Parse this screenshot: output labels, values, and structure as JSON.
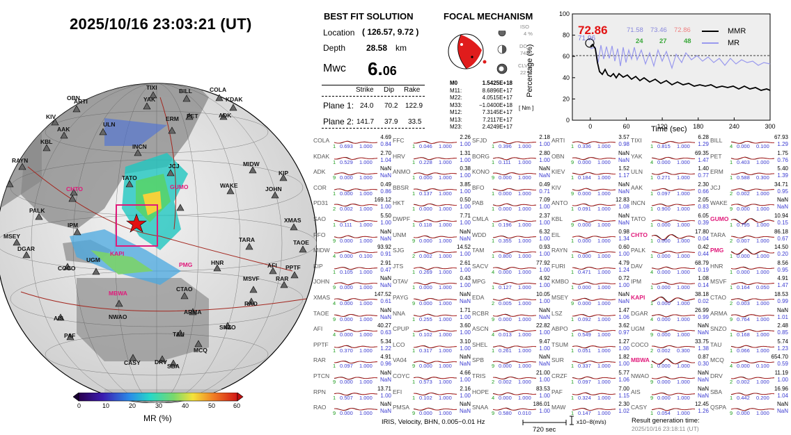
{
  "header": {
    "datetime": "2025/10/16  23:03:21 (UT)"
  },
  "best_fit": {
    "title": "BEST FIT SOLUTION",
    "location_label": "Location",
    "location_value": "( 126.57,  9.72 )",
    "depth_label": "Depth",
    "depth_value": "28.58",
    "depth_unit": "km",
    "mw_label": "Mwc",
    "mw_value_main": "6.",
    "mw_value_sub": "06",
    "col_strike": "Strike",
    "col_dip": "Dip",
    "col_rake": "Rake",
    "plane1_label": "Plane 1:",
    "plane1": [
      "24.0",
      "70.2",
      "122.9"
    ],
    "plane2_label": "Plane 2:",
    "plane2": [
      "141.7",
      "37.9",
      "33.5"
    ]
  },
  "focal": {
    "title": "FOCAL MECHANISM",
    "iso_label": "ISO",
    "iso_value": "4 %",
    "dc_label": "DC",
    "dc_value": "74 %",
    "clvd_label": "CLVD",
    "clvd_value": "22 %",
    "tensor": [
      {
        "k": "M0",
        "v": "1.5425E+18"
      },
      {
        "k": "M11:",
        "v": "8.6896E+17"
      },
      {
        "k": "M22:",
        "v": "4.0515E+17"
      },
      {
        "k": "M33:",
        "v": "−1.0400E+18"
      },
      {
        "k": "M12:",
        "v": "7.3145E+17"
      },
      {
        "k": "M13:",
        "v": "7.2117E+17"
      },
      {
        "k": "M23:",
        "v": "2.4249E+17"
      }
    ],
    "unit": "[ Nm ]"
  },
  "mr_chart": {
    "ylabel": "Percentage (%)",
    "xlabel": "Time (sec)",
    "x_ticks": [
      "0",
      "60",
      "120",
      "180",
      "240",
      "300"
    ],
    "y_ticks": [
      "0",
      "20",
      "40",
      "60",
      "80",
      "100"
    ],
    "peak_value": "72.86",
    "peak_sub": "71.96",
    "stats_blue": [
      "71.58",
      "73.46"
    ],
    "stats_red": "72.86",
    "stats_green": [
      "24",
      "27",
      "48"
    ],
    "legend_mmr": "MMR",
    "legend_mr": "MR",
    "color_mmr": "#000000",
    "color_mr": "#9999ee"
  },
  "map": {
    "colorbar_label": "MR (%)",
    "colorbar_ticks": [
      "0",
      "10",
      "20",
      "30",
      "40",
      "50",
      "60"
    ],
    "stations_black": [
      "TIXI",
      "BILL",
      "COLA",
      "OBN",
      "ARTI",
      "YAK",
      "KDAK",
      "KIV",
      "AAK",
      "ULN",
      "PET",
      "ADK",
      "KBL",
      "INCN",
      "ERM",
      "MIDW",
      "RAYN",
      "TATO",
      "JCJ",
      "KIP",
      "WAKE",
      "JOHN",
      "PALK",
      "IPM",
      "XMAS",
      "MSEY",
      "TARA",
      "TAOE",
      "DGAR",
      "COCO",
      "UGM",
      "HNR",
      "AFI",
      "PPTF",
      "RAR",
      "MSVF",
      "CTAO",
      "RAO",
      "NWAO",
      "ARMA",
      "AIS",
      "SNZO",
      "PAF",
      "TAU",
      "MCQ",
      "CASY",
      "DRV",
      "SBA"
    ],
    "stations_pink": [
      "CHTO",
      "GUMO",
      "KAPI",
      "PMG",
      "MBWA"
    ]
  },
  "stations": [
    [
      {
        "n": "COLA",
        "a": "4.69",
        "b": "0.84",
        "c": "1",
        "d": "0.693",
        "e": "1.000"
      },
      {
        "n": "KDAK",
        "a": "2.70",
        "b": "1.04",
        "c": "1",
        "d": "0.529",
        "e": "1.000"
      },
      {
        "n": "ADK",
        "a": "NaN",
        "b": "NaN",
        "c": "9",
        "d": "0.000",
        "e": "1.000"
      },
      {
        "n": "COR",
        "a": "0.49",
        "b": "0.86",
        "c": "1",
        "d": "0.000",
        "e": "1.000"
      },
      {
        "n": "PD31",
        "a": "169.12",
        "b": "1.00",
        "c": "2",
        "d": "0.002",
        "e": "1.000"
      },
      {
        "n": "SAO",
        "a": "5.50",
        "b": "1.00",
        "c": "1",
        "d": "0.111",
        "e": "1.000"
      },
      {
        "n": "PFO",
        "a": "NaN",
        "b": "NaN",
        "c": "9",
        "d": "0.000",
        "e": "1.000"
      },
      {
        "n": "MIDW",
        "a": "93.92",
        "b": "0.91",
        "c": "4",
        "d": "0.000",
        "e": "0.100"
      },
      {
        "n": "KIP",
        "a": "2.91",
        "b": "0.47",
        "c": "1",
        "d": "0.105",
        "e": "1.000"
      },
      {
        "n": "JOHN",
        "a": "NaN",
        "b": "NaN",
        "c": "9",
        "d": "0.000",
        "e": "1.000"
      },
      {
        "n": "XMAS",
        "a": "147.52",
        "b": "0.61",
        "c": "4",
        "d": "0.000",
        "e": "1.000"
      },
      {
        "n": "TAOE",
        "a": "NaN",
        "b": "NaN",
        "c": "9",
        "d": "0.000",
        "e": "1.000"
      },
      {
        "n": "AFI",
        "a": "40.27",
        "b": "0.63",
        "c": "4",
        "d": "0.000",
        "e": "1.000"
      },
      {
        "n": "PPTF",
        "a": "5.34",
        "b": "1.22",
        "c": "1",
        "d": "0.370",
        "e": "1.000"
      },
      {
        "n": "RAR",
        "a": "4.91",
        "b": "0.96",
        "c": "1",
        "d": "0.097",
        "e": "1.000"
      },
      {
        "n": "PTCN",
        "a": "NaN",
        "b": "NaN",
        "c": "9",
        "d": "0.000",
        "e": "1.000"
      },
      {
        "n": "RPN",
        "a": "13.71",
        "b": "1.00",
        "c": "1",
        "d": "0.507",
        "e": "1.000"
      },
      {
        "n": "RAO",
        "a": "NaN",
        "b": "NaN",
        "c": "9",
        "d": "0.000",
        "e": "1.000"
      }
    ],
    [
      {
        "n": "FFC",
        "a": "2.26",
        "b": "1.00",
        "c": "1",
        "d": "0.046",
        "e": "1.000"
      },
      {
        "n": "HRV",
        "a": "1.31",
        "b": "1.00",
        "c": "1",
        "d": "0.228",
        "e": "1.000"
      },
      {
        "n": "ANMO",
        "a": "0.38",
        "b": "1.00",
        "c": "1",
        "d": "0.000",
        "e": "1.000"
      },
      {
        "n": "BBSR",
        "a": "3.85",
        "b": "1.00",
        "c": "1",
        "d": "0.137",
        "e": "1.000"
      },
      {
        "n": "HKT",
        "a": "0.50",
        "b": "1.00",
        "c": "1",
        "d": "0.000",
        "e": "1.000"
      },
      {
        "n": "DWPF",
        "a": "7.71",
        "b": "1.00",
        "c": "1",
        "d": "0.118",
        "e": "1.000"
      },
      {
        "n": "UNM",
        "a": "NaN",
        "b": "NaN",
        "c": "9",
        "d": "0.000",
        "e": "1.000"
      },
      {
        "n": "SJG",
        "a": "14.52",
        "b": "1.00",
        "c": "2",
        "d": "0.002",
        "e": "1.000"
      },
      {
        "n": "JTS",
        "a": "2.61",
        "b": "1.00",
        "c": "1",
        "d": "0.269",
        "e": "1.000"
      },
      {
        "n": "OTAV",
        "a": "0.43",
        "b": "1.00",
        "c": "1",
        "d": "0.000",
        "e": "1.000"
      },
      {
        "n": "PAYG",
        "a": "NaN",
        "b": "NaN",
        "c": "9",
        "d": "0.000",
        "e": "1.000"
      },
      {
        "n": "NNA",
        "a": "1.71",
        "b": "1.00",
        "c": "1",
        "d": "0.255",
        "e": "1.000"
      },
      {
        "n": "CPUP",
        "a": "3.60",
        "b": "1.00",
        "c": "1",
        "d": "0.102",
        "e": "1.000"
      },
      {
        "n": "LCO",
        "a": "3.10",
        "b": "1.00",
        "c": "1",
        "d": "0.317",
        "e": "1.000"
      },
      {
        "n": "VA04",
        "a": "NaN",
        "b": "NaN",
        "c": "9",
        "d": "0.000",
        "e": "1.000"
      },
      {
        "n": "COYC",
        "a": "4.66",
        "b": "1.00",
        "c": "1",
        "d": "0.573",
        "e": "1.000"
      },
      {
        "n": "EFI",
        "a": "2.16",
        "b": "1.00",
        "c": "1",
        "d": "0.102",
        "e": "1.000"
      },
      {
        "n": "PMSA",
        "a": "NaN",
        "b": "NaN",
        "c": "9",
        "d": "0.000",
        "e": "1.000"
      }
    ],
    [
      {
        "n": "SFJD",
        "a": "2.18",
        "b": "1.00",
        "c": "1",
        "d": "0.396",
        "e": "1.000"
      },
      {
        "n": "BORG",
        "a": "2.80",
        "b": "1.00",
        "c": "1",
        "d": "0.111",
        "e": "1.000"
      },
      {
        "n": "KONO",
        "a": "NaN",
        "b": "NaN",
        "c": "9",
        "d": "0.000",
        "e": "1.000"
      },
      {
        "n": "BFO",
        "a": "0.49",
        "b": "0.71",
        "c": "1",
        "d": "0.000",
        "e": "1.000"
      },
      {
        "n": "PAB",
        "a": "7.09",
        "b": "1.00",
        "c": "1",
        "d": "0.000",
        "e": "1.000"
      },
      {
        "n": "CMLA",
        "a": "2.37",
        "b": "1.00",
        "c": "1",
        "d": "0.196",
        "e": "1.000"
      },
      {
        "n": "WDD",
        "a": "6.32",
        "b": "1.00",
        "c": "1",
        "d": "0.355",
        "e": "1.000"
      },
      {
        "n": "TAM",
        "a": "0.93",
        "b": "1.00",
        "c": "1",
        "d": "0.800",
        "e": "1.000"
      },
      {
        "n": "SACV",
        "a": "77.92",
        "b": "1.00",
        "c": "4",
        "d": "0.000",
        "e": "1.000"
      },
      {
        "n": "MPG",
        "a": "4.92",
        "b": "1.00",
        "c": "1",
        "d": "0.127",
        "e": "1.000"
      },
      {
        "n": "EDA",
        "a": "10.05",
        "b": "1.00",
        "c": "2",
        "d": "0.005",
        "e": "1.000"
      },
      {
        "n": "RCBR",
        "a": "NaN",
        "b": "NaN",
        "c": "9",
        "d": "0.000",
        "e": "1.000"
      },
      {
        "n": "ASCN",
        "a": "22.82",
        "b": "1.00",
        "c": "4",
        "d": "0.013",
        "e": "1.000"
      },
      {
        "n": "SHEL",
        "a": "9.47",
        "b": "1.00",
        "c": "1",
        "d": "0.261",
        "e": "1.000"
      },
      {
        "n": "SPB",
        "a": "NaN",
        "b": "NaN",
        "c": "9",
        "d": "0.000",
        "e": "1.000"
      },
      {
        "n": "TRIS",
        "a": "21.00",
        "b": "1.00",
        "c": "2",
        "d": "0.002",
        "e": "1.000"
      },
      {
        "n": "HOPE",
        "a": "83.53",
        "b": "1.00",
        "c": "4",
        "d": "0.000",
        "e": "1.000"
      },
      {
        "n": "SNAA",
        "a": "186.01",
        "b": "1.00",
        "c": "9",
        "d": "0.580",
        "e": "0.010"
      }
    ],
    [
      {
        "n": "ARTI",
        "a": "3.57",
        "b": "0.98",
        "c": "1",
        "d": "0.336",
        "e": "1.000"
      },
      {
        "n": "OBN",
        "a": "NaN",
        "b": "NaN",
        "c": "9",
        "d": "0.000",
        "e": "1.000"
      },
      {
        "n": "KIEV",
        "a": "1.52",
        "b": "1.17",
        "c": "1",
        "d": "0.184",
        "e": "1.000"
      },
      {
        "n": "KIV",
        "a": "NaN",
        "b": "NaN",
        "c": "9",
        "d": "0.000",
        "e": "1.000"
      },
      {
        "n": "ANTO",
        "a": "12.83",
        "b": "1.08",
        "c": "1",
        "d": "0.091",
        "e": "1.000"
      },
      {
        "n": "KBL",
        "a": "NaN",
        "b": "NaN",
        "c": "9",
        "d": "0.000",
        "e": "1.000"
      },
      {
        "n": "EIL",
        "a": "0.98",
        "b": "1.34",
        "c": "1",
        "d": "0.000",
        "e": "1.000"
      },
      {
        "n": "RAYN",
        "a": "0.60",
        "b": "1.00",
        "c": "1",
        "d": "0.000",
        "e": "1.000"
      },
      {
        "n": "FURI",
        "a": "4.79",
        "b": "1.24",
        "c": "1",
        "d": "0.471",
        "e": "1.000"
      },
      {
        "n": "KMBO",
        "a": "0.72",
        "b": "1.00",
        "c": "1",
        "d": "0.000",
        "e": "1.000"
      },
      {
        "n": "MSEY",
        "a": "NaN",
        "b": "NaN",
        "c": "9",
        "d": "0.000",
        "e": "1.000"
      },
      {
        "n": "LSZ",
        "a": "1.47",
        "b": "1.06",
        "c": "1",
        "d": "0.092",
        "e": "1.000"
      },
      {
        "n": "ABPO",
        "a": "3.62",
        "b": "0.97",
        "c": "1",
        "d": "0.549",
        "e": "1.000"
      },
      {
        "n": "TSUM",
        "a": "1.27",
        "b": "1.00",
        "c": "1",
        "d": "0.051",
        "e": "1.000"
      },
      {
        "n": "SUR",
        "a": "1.82",
        "b": "1.00",
        "c": "1",
        "d": "0.337",
        "e": "1.000"
      },
      {
        "n": "CRZF",
        "a": "5.77",
        "b": "1.06",
        "c": "1",
        "d": "0.097",
        "e": "1.000"
      },
      {
        "n": "PAF",
        "a": "7.00",
        "b": "1.15",
        "c": "1",
        "d": "0.324",
        "e": "1.000"
      },
      {
        "n": "MAW",
        "a": "2.30",
        "b": "1.02",
        "c": "1",
        "d": "0.147",
        "e": "1.000"
      }
    ],
    [
      {
        "n": "TIXI",
        "a": "6.28",
        "b": "1.29",
        "c": "1",
        "d": "0.815",
        "e": "1.000"
      },
      {
        "n": "YAK",
        "a": "69.35",
        "b": "1.47",
        "c": "4",
        "d": "0.000",
        "e": "1.000"
      },
      {
        "n": "ULN",
        "a": "1.40",
        "b": "0.77",
        "c": "1",
        "d": "0.271",
        "e": "1.000"
      },
      {
        "n": "AAK",
        "a": "2.30",
        "b": "0.66",
        "c": "1",
        "d": "0.097",
        "e": "1.000"
      },
      {
        "n": "INCN",
        "a": "2.05",
        "b": "0.83",
        "c": "1",
        "d": "0.900",
        "e": "1.000"
      },
      {
        "n": "TATO",
        "a": "6.05",
        "b": "0.39",
        "c": "1",
        "d": "0.000",
        "e": "1.000"
      },
      {
        "n": "CHTO",
        "a": "17.80",
        "b": "0.04",
        "c": "1",
        "d": "0.000",
        "e": "1.000",
        "pk": true
      },
      {
        "n": "PALK",
        "a": "0.42",
        "b": "0.44",
        "c": "1",
        "d": "0.000",
        "e": "1.000"
      },
      {
        "n": "DAV",
        "a": "68.79",
        "b": "0.19",
        "c": "4",
        "d": "0.000",
        "e": "1.000"
      },
      {
        "n": "IPM",
        "a": "1.08",
        "b": "0.14",
        "c": "1",
        "d": "0.000",
        "e": "1.000"
      },
      {
        "n": "KAPI",
        "a": "38.18",
        "b": "0.02",
        "c": "1",
        "d": "0.000",
        "e": "1.000",
        "pk": true
      },
      {
        "n": "DGAR",
        "a": "26.99",
        "b": "0.99",
        "c": "4",
        "d": "0.000",
        "e": "1.000"
      },
      {
        "n": "UGM",
        "a": "NaN",
        "b": "NaN",
        "c": "9",
        "d": "0.000",
        "e": "1.000"
      },
      {
        "n": "COCO",
        "a": "33.75",
        "b": "1.38",
        "c": "2",
        "d": "0.002",
        "e": "0.300"
      },
      {
        "n": "MBWA",
        "a": "0.87",
        "b": "0.30",
        "c": "1",
        "d": "0.000",
        "e": "1.000",
        "pk": true
      },
      {
        "n": "NWAO",
        "a": "NaN",
        "b": "NaN",
        "c": "9",
        "d": "0.000",
        "e": "1.000"
      },
      {
        "n": "AIS",
        "a": "NaN",
        "b": "NaN",
        "c": "9",
        "d": "0.000",
        "e": "1.000"
      },
      {
        "n": "CASY",
        "a": "12.45",
        "b": "1.26",
        "c": "1",
        "d": "0.054",
        "e": "1.000"
      }
    ],
    [
      {
        "n": "BILL",
        "a": "67.93",
        "b": "1.29",
        "c": "4",
        "d": "0.000",
        "e": "0.100"
      },
      {
        "n": "PET",
        "a": "1.75",
        "b": "0.76",
        "c": "1",
        "d": "0.403",
        "e": "1.000"
      },
      {
        "n": "ERM",
        "a": "5.40",
        "b": "1.39",
        "c": "1",
        "d": "0.588",
        "e": "0.300"
      },
      {
        "n": "JCJ",
        "a": "34.71",
        "b": "0.95",
        "c": "2",
        "d": "0.002",
        "e": "1.000"
      },
      {
        "n": "WAKE",
        "a": "NaN",
        "b": "NaN",
        "c": "9",
        "d": "0.000",
        "e": "1.000"
      },
      {
        "n": "GUMO",
        "a": "10.94",
        "b": "0.15",
        "c": "1",
        "d": "0.795",
        "e": "1.000",
        "pk": true
      },
      {
        "n": "TARA",
        "a": "86.18",
        "b": "0.67",
        "c": "2",
        "d": "0.007",
        "e": "1.000"
      },
      {
        "n": "PMG",
        "a": "14.50",
        "b": "0.20",
        "c": "1",
        "d": "0.000",
        "e": "1.000",
        "pk": true
      },
      {
        "n": "HNR",
        "a": "8.56",
        "b": "0.95",
        "c": "1",
        "d": "0.000",
        "e": "1.000"
      },
      {
        "n": "MSVF",
        "a": "4.91",
        "b": "1.47",
        "c": "1",
        "d": "0.164",
        "e": "0.050"
      },
      {
        "n": "CTAO",
        "a": "18.53",
        "b": "0.99",
        "c": "2",
        "d": "0.003",
        "e": "1.000"
      },
      {
        "n": "ARMA",
        "a": "NaN",
        "b": "1.01",
        "c": "9",
        "d": "0.764",
        "e": "1.000"
      },
      {
        "n": "SNZO",
        "a": "2.48",
        "b": "0.85",
        "c": "1",
        "d": "0.168",
        "e": "1.000"
      },
      {
        "n": "TAU",
        "a": "5.74",
        "b": "1.23",
        "c": "1",
        "d": "0.066",
        "e": "1.000"
      },
      {
        "n": "MCQ",
        "a": "654.70",
        "b": "0.59",
        "c": "4",
        "d": "0.000",
        "e": "0.100"
      },
      {
        "n": "DRV",
        "a": "11.19",
        "b": "1.00",
        "c": "2",
        "d": "0.002",
        "e": "1.000"
      },
      {
        "n": "SBA",
        "a": "16.96",
        "b": "1.04",
        "c": "1",
        "d": "0.442",
        "e": "0.200"
      },
      {
        "n": "QSPA",
        "a": "NaN",
        "b": "NaN",
        "c": "9",
        "d": "0.000",
        "e": "1.000"
      }
    ]
  ],
  "footer": {
    "filter": "IRIS, Velocity,   BHN,  0.005−0.01 Hz",
    "scale_label": "720 sec",
    "amp_unit": "x10−8(m/s)",
    "result_label": "Result generation time:",
    "result_time": "2025/10/16 23:18:11 (UT)"
  }
}
